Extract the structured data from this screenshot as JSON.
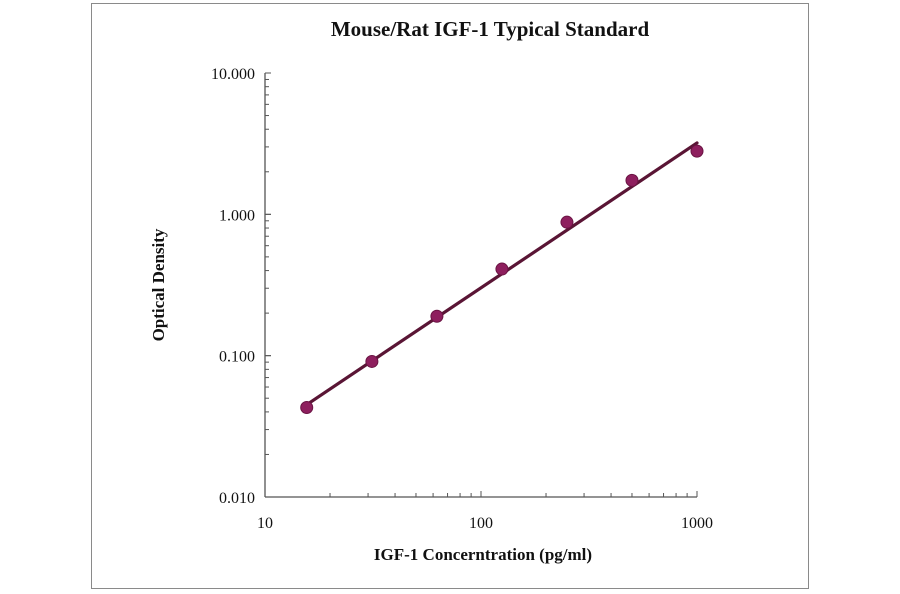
{
  "chart_data": {
    "type": "scatter",
    "title": "Mouse/Rat IGF-1 Typical Standard",
    "xlabel": "IGF-1 Concerntration (pg/ml)",
    "ylabel": "Optical Density",
    "x_scale": "log",
    "y_scale": "log",
    "xlim": [
      10,
      1000
    ],
    "ylim": [
      0.01,
      10
    ],
    "x_ticks": [
      "10",
      "100",
      "1000"
    ],
    "y_ticks": [
      "0.010",
      "0.100",
      "1.000",
      "10.000"
    ],
    "grid": false,
    "series": [
      {
        "x": [
          15.6,
          31.25,
          62.5,
          125,
          250,
          500,
          1000
        ],
        "y": [
          0.043,
          0.091,
          0.19,
          0.41,
          0.88,
          1.74,
          2.8
        ],
        "marker_color": "#8e1f5e"
      }
    ],
    "fit_line": {
      "type": "power",
      "x": [
        15.6,
        1000
      ],
      "y": [
        0.045,
        3.2
      ],
      "color": "#5a1535"
    }
  }
}
